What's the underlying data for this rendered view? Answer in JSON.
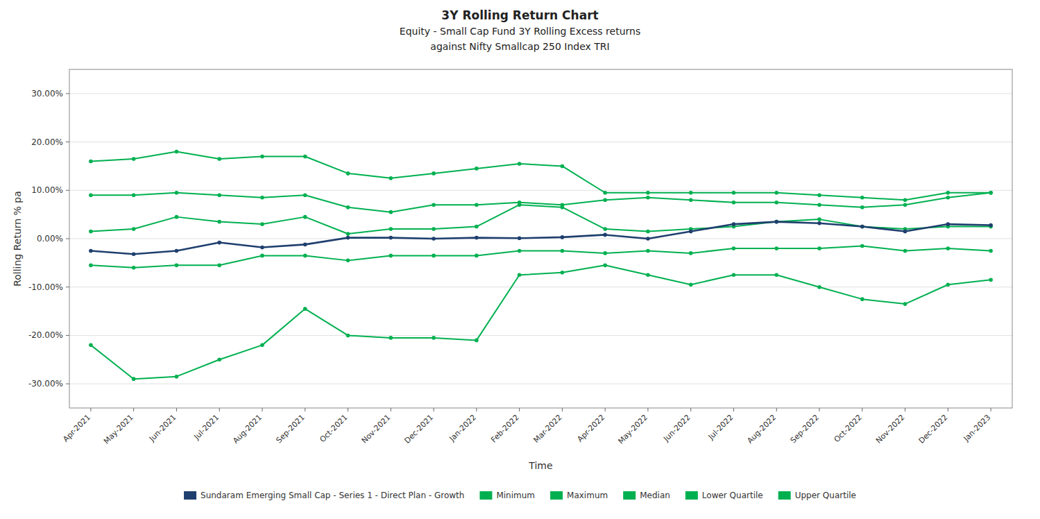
{
  "chart_data": {
    "type": "line",
    "title": [
      "3Y Rolling Return Chart",
      "Equity - Small Cap Fund 3Y Rolling Excess returns",
      "against Nifty Smallcap 250 Index TRI"
    ],
    "x_label": "Time",
    "y_label": "Rolling Return % pa",
    "categories": [
      "Apr-2021",
      "May-2021",
      "Jun-2021",
      "Jul-2021",
      "Aug-2021",
      "Sep-2021",
      "Oct-2021",
      "Nov-2021",
      "Dec-2021",
      "Jan-2022",
      "Feb-2022",
      "Mar-2022",
      "Apr-2022",
      "May-2022",
      "Jun-2022",
      "Jul-2022",
      "Aug-2022",
      "Sep-2022",
      "Oct-2022",
      "Nov-2022",
      "Dec-2022",
      "Jan-2023"
    ],
    "series": [
      {
        "name": "Sundaram Emerging Small Cap - Series 1 - Direct Plan - Growth",
        "color": "#1f3f6e",
        "values": [
          -2.5,
          -3.2,
          -2.5,
          -0.8,
          -1.8,
          -1.2,
          0.2,
          0.2,
          0.0,
          0.2,
          0.1,
          0.3,
          0.8,
          0.0,
          1.5,
          3.0,
          3.5,
          3.2,
          2.5,
          1.5,
          3.0,
          2.8
        ]
      },
      {
        "name": "Minimum",
        "color": "#00b050",
        "values": [
          -22.0,
          -29.0,
          -28.5,
          -25.0,
          -22.0,
          -14.5,
          -20.0,
          -20.5,
          -20.5,
          -21.0,
          -7.5,
          -7.0,
          -5.5,
          -7.5,
          -9.5,
          -7.5,
          -7.5,
          -10.0,
          -12.5,
          -13.5,
          -9.5,
          -8.5
        ]
      },
      {
        "name": "Maximum",
        "color": "#00b050",
        "values": [
          16.0,
          16.5,
          18.0,
          16.5,
          17.0,
          17.0,
          13.5,
          12.5,
          13.5,
          14.5,
          15.5,
          15.0,
          9.5,
          9.5,
          9.5,
          9.5,
          9.5,
          9.0,
          8.5,
          8.0,
          9.5,
          9.5
        ]
      },
      {
        "name": "Median",
        "color": "#00b050",
        "values": [
          1.5,
          2.0,
          4.5,
          3.5,
          3.0,
          4.5,
          1.0,
          2.0,
          2.0,
          2.5,
          7.0,
          6.5,
          2.0,
          1.5,
          2.0,
          2.5,
          3.5,
          4.0,
          2.5,
          2.0,
          2.5,
          2.5
        ]
      },
      {
        "name": "Lower Quartile",
        "color": "#00b050",
        "values": [
          -5.5,
          -6.0,
          -5.5,
          -5.5,
          -3.5,
          -3.5,
          -4.5,
          -3.5,
          -3.5,
          -3.5,
          -2.5,
          -2.5,
          -3.0,
          -2.5,
          -3.0,
          -2.0,
          -2.0,
          -2.0,
          -1.5,
          -2.5,
          -2.0,
          -2.5
        ]
      },
      {
        "name": "Upper Quartile",
        "color": "#00b050",
        "values": [
          9.0,
          9.0,
          9.5,
          9.0,
          8.5,
          9.0,
          6.5,
          5.5,
          7.0,
          7.0,
          7.5,
          7.0,
          8.0,
          8.5,
          8.0,
          7.5,
          7.5,
          7.0,
          6.5,
          7.0,
          8.5,
          9.5
        ]
      }
    ],
    "ylim": [
      -35,
      35
    ],
    "yticks": [
      {
        "value": -30,
        "label": "-30.00%"
      },
      {
        "value": -20,
        "label": "-20.00%"
      },
      {
        "value": -10,
        "label": "-10.00%"
      },
      {
        "value": 0,
        "label": "0.00%"
      },
      {
        "value": 10,
        "label": "10.00%"
      },
      {
        "value": 20,
        "label": "20.00%"
      },
      {
        "value": 30,
        "label": "30.00%"
      }
    ],
    "grid": true,
    "legend": "bottom",
    "marker": "circle",
    "line_style": "solid"
  }
}
